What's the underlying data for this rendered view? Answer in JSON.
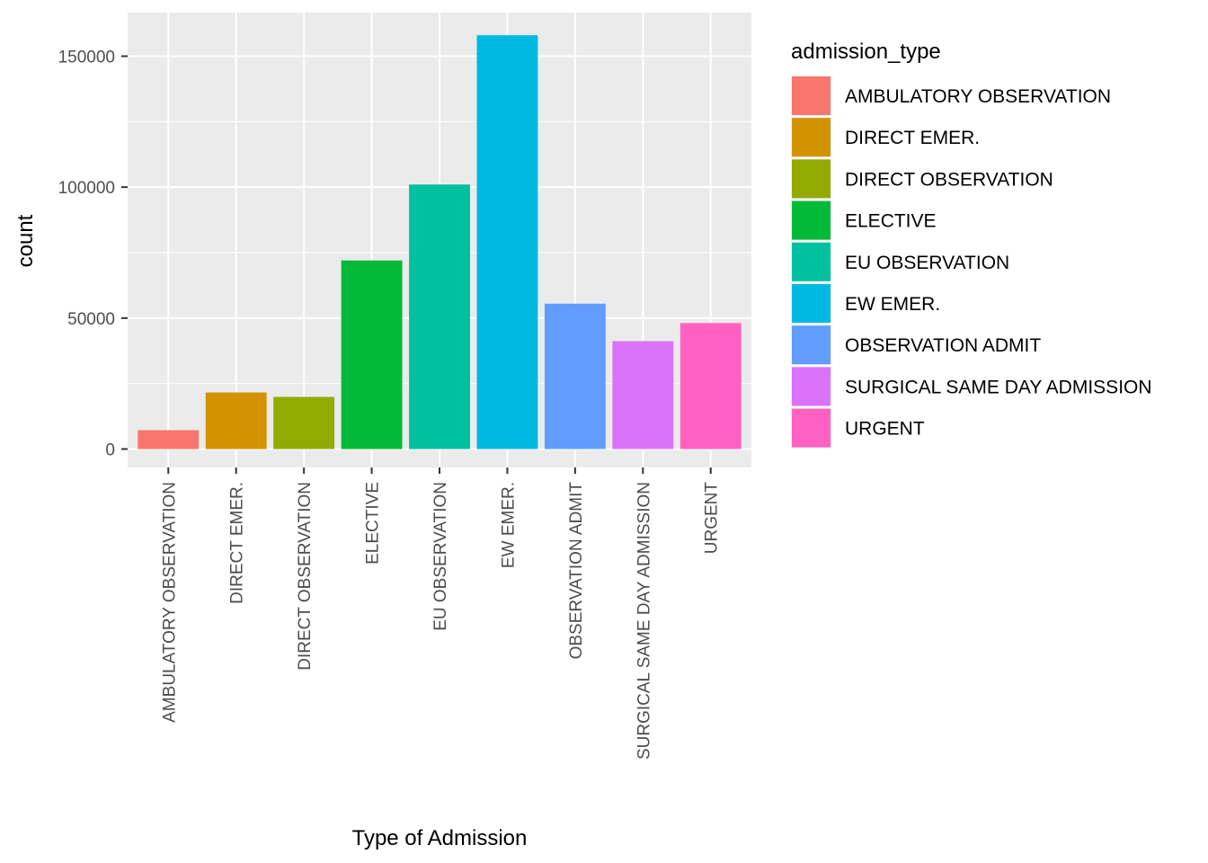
{
  "chart_data": {
    "type": "bar",
    "categories": [
      "AMBULATORY OBSERVATION",
      "DIRECT EMER.",
      "DIRECT OBSERVATION",
      "ELECTIVE",
      "EU OBSERVATION",
      "EW EMER.",
      "OBSERVATION ADMIT",
      "SURGICAL SAME DAY ADMISSION",
      "URGENT"
    ],
    "values": [
      7200,
      21600,
      19900,
      72000,
      101000,
      158000,
      55500,
      41200,
      48100
    ],
    "colors": [
      "#F8766D",
      "#D39200",
      "#93AA00",
      "#00BA38",
      "#00C19F",
      "#00B9E3",
      "#619CFF",
      "#DB72FB",
      "#FF61C3"
    ],
    "xlabel": "Type of Admission",
    "ylabel": "count",
    "ylim": [
      0,
      162000
    ],
    "yticks": [
      0,
      50000,
      100000,
      150000
    ],
    "ytick_labels": [
      "0",
      "50000",
      "100000",
      "150000"
    ],
    "grid": true,
    "background": "#EBEBEB",
    "legend": {
      "title": "admission_type",
      "placement": "right",
      "entries": [
        "AMBULATORY OBSERVATION",
        "DIRECT EMER.",
        "DIRECT OBSERVATION",
        "ELECTIVE",
        "EU OBSERVATION",
        "EW EMER.",
        "OBSERVATION ADMIT",
        "SURGICAL SAME DAY ADMISSION",
        "URGENT"
      ]
    }
  }
}
